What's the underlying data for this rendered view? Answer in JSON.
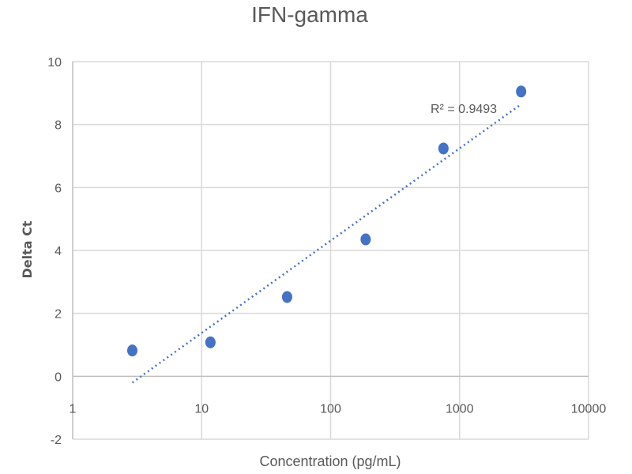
{
  "chart_data": {
    "type": "scatter",
    "title": "IFN-gamma",
    "xlabel": "Concentration (pg/mL)",
    "ylabel": "Delta Ct",
    "xscale": "log",
    "xlim": [
      1,
      10000
    ],
    "ylim": [
      -2,
      10
    ],
    "x_ticks": [
      "1",
      "10",
      "100",
      "1000",
      "10000"
    ],
    "y_ticks": [
      "-2",
      "0",
      "2",
      "4",
      "6",
      "8",
      "10"
    ],
    "grid": true,
    "legend": "none",
    "series_color": "#4472c4",
    "points": [
      {
        "x": 2.9,
        "y": 0.82
      },
      {
        "x": 11.7,
        "y": 1.08
      },
      {
        "x": 46,
        "y": 2.52
      },
      {
        "x": 187,
        "y": 4.35
      },
      {
        "x": 750,
        "y": 7.24
      },
      {
        "x": 3000,
        "y": 9.05
      }
    ],
    "trendline": {
      "type": "log-linear",
      "from": {
        "x": 2.9,
        "y": -0.2
      },
      "to": {
        "x": 2900,
        "y": 8.6
      },
      "label": "R² = 0.9493"
    }
  }
}
